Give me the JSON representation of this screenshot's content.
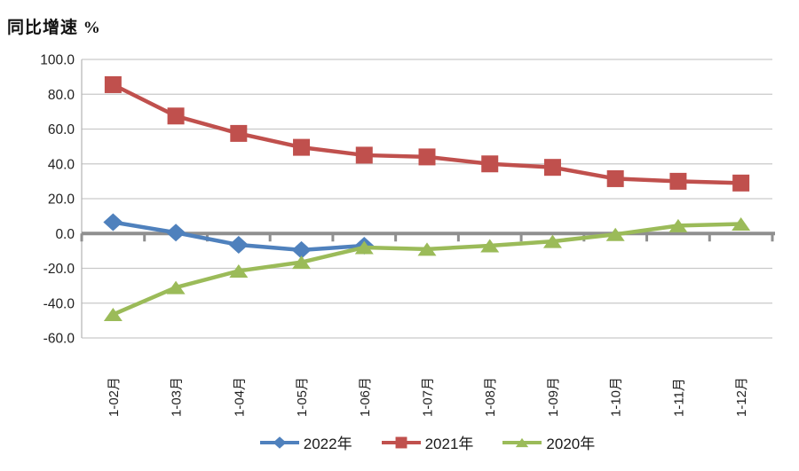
{
  "chart_data": {
    "type": "line",
    "title": "同比增速 %",
    "categories": [
      "1-02月",
      "1-03月",
      "1-04月",
      "1-05月",
      "1-06月",
      "1-07月",
      "1-08月",
      "1-09月",
      "1-10月",
      "1-11月",
      "1-12月"
    ],
    "series": [
      {
        "name": "2022年",
        "marker": "diamond",
        "color": "#4F81BD",
        "values": [
          6.5,
          0.5,
          -6.5,
          -9.5,
          -7.0,
          null,
          null,
          null,
          null,
          null,
          null
        ]
      },
      {
        "name": "2021年",
        "marker": "square",
        "color": "#C0504D",
        "values": [
          85.5,
          67.5,
          57.5,
          49.5,
          45.0,
          44.0,
          40.0,
          38.0,
          31.5,
          30.0,
          29.0
        ]
      },
      {
        "name": "2020年",
        "marker": "triangle",
        "color": "#9BBB59",
        "values": [
          -46.5,
          -31.0,
          -21.5,
          -16.5,
          -8.0,
          -9.0,
          -7.0,
          -4.5,
          -0.5,
          4.5,
          5.5
        ]
      }
    ],
    "y_axis": {
      "min": -60,
      "max": 100,
      "step": 20,
      "tick_labels": [
        "100.0",
        "80.0",
        "60.0",
        "40.0",
        "20.0",
        "0.0",
        "-20.0",
        "-40.0",
        "-60.0"
      ]
    },
    "x_axis": {
      "label_rotation_deg": -90
    },
    "grid": true,
    "legend_position": "bottom",
    "colors": {
      "gridline": "#C9C9C9",
      "zero_axis": "#8F8F8F",
      "axis_line": "#B5B5B5"
    }
  }
}
